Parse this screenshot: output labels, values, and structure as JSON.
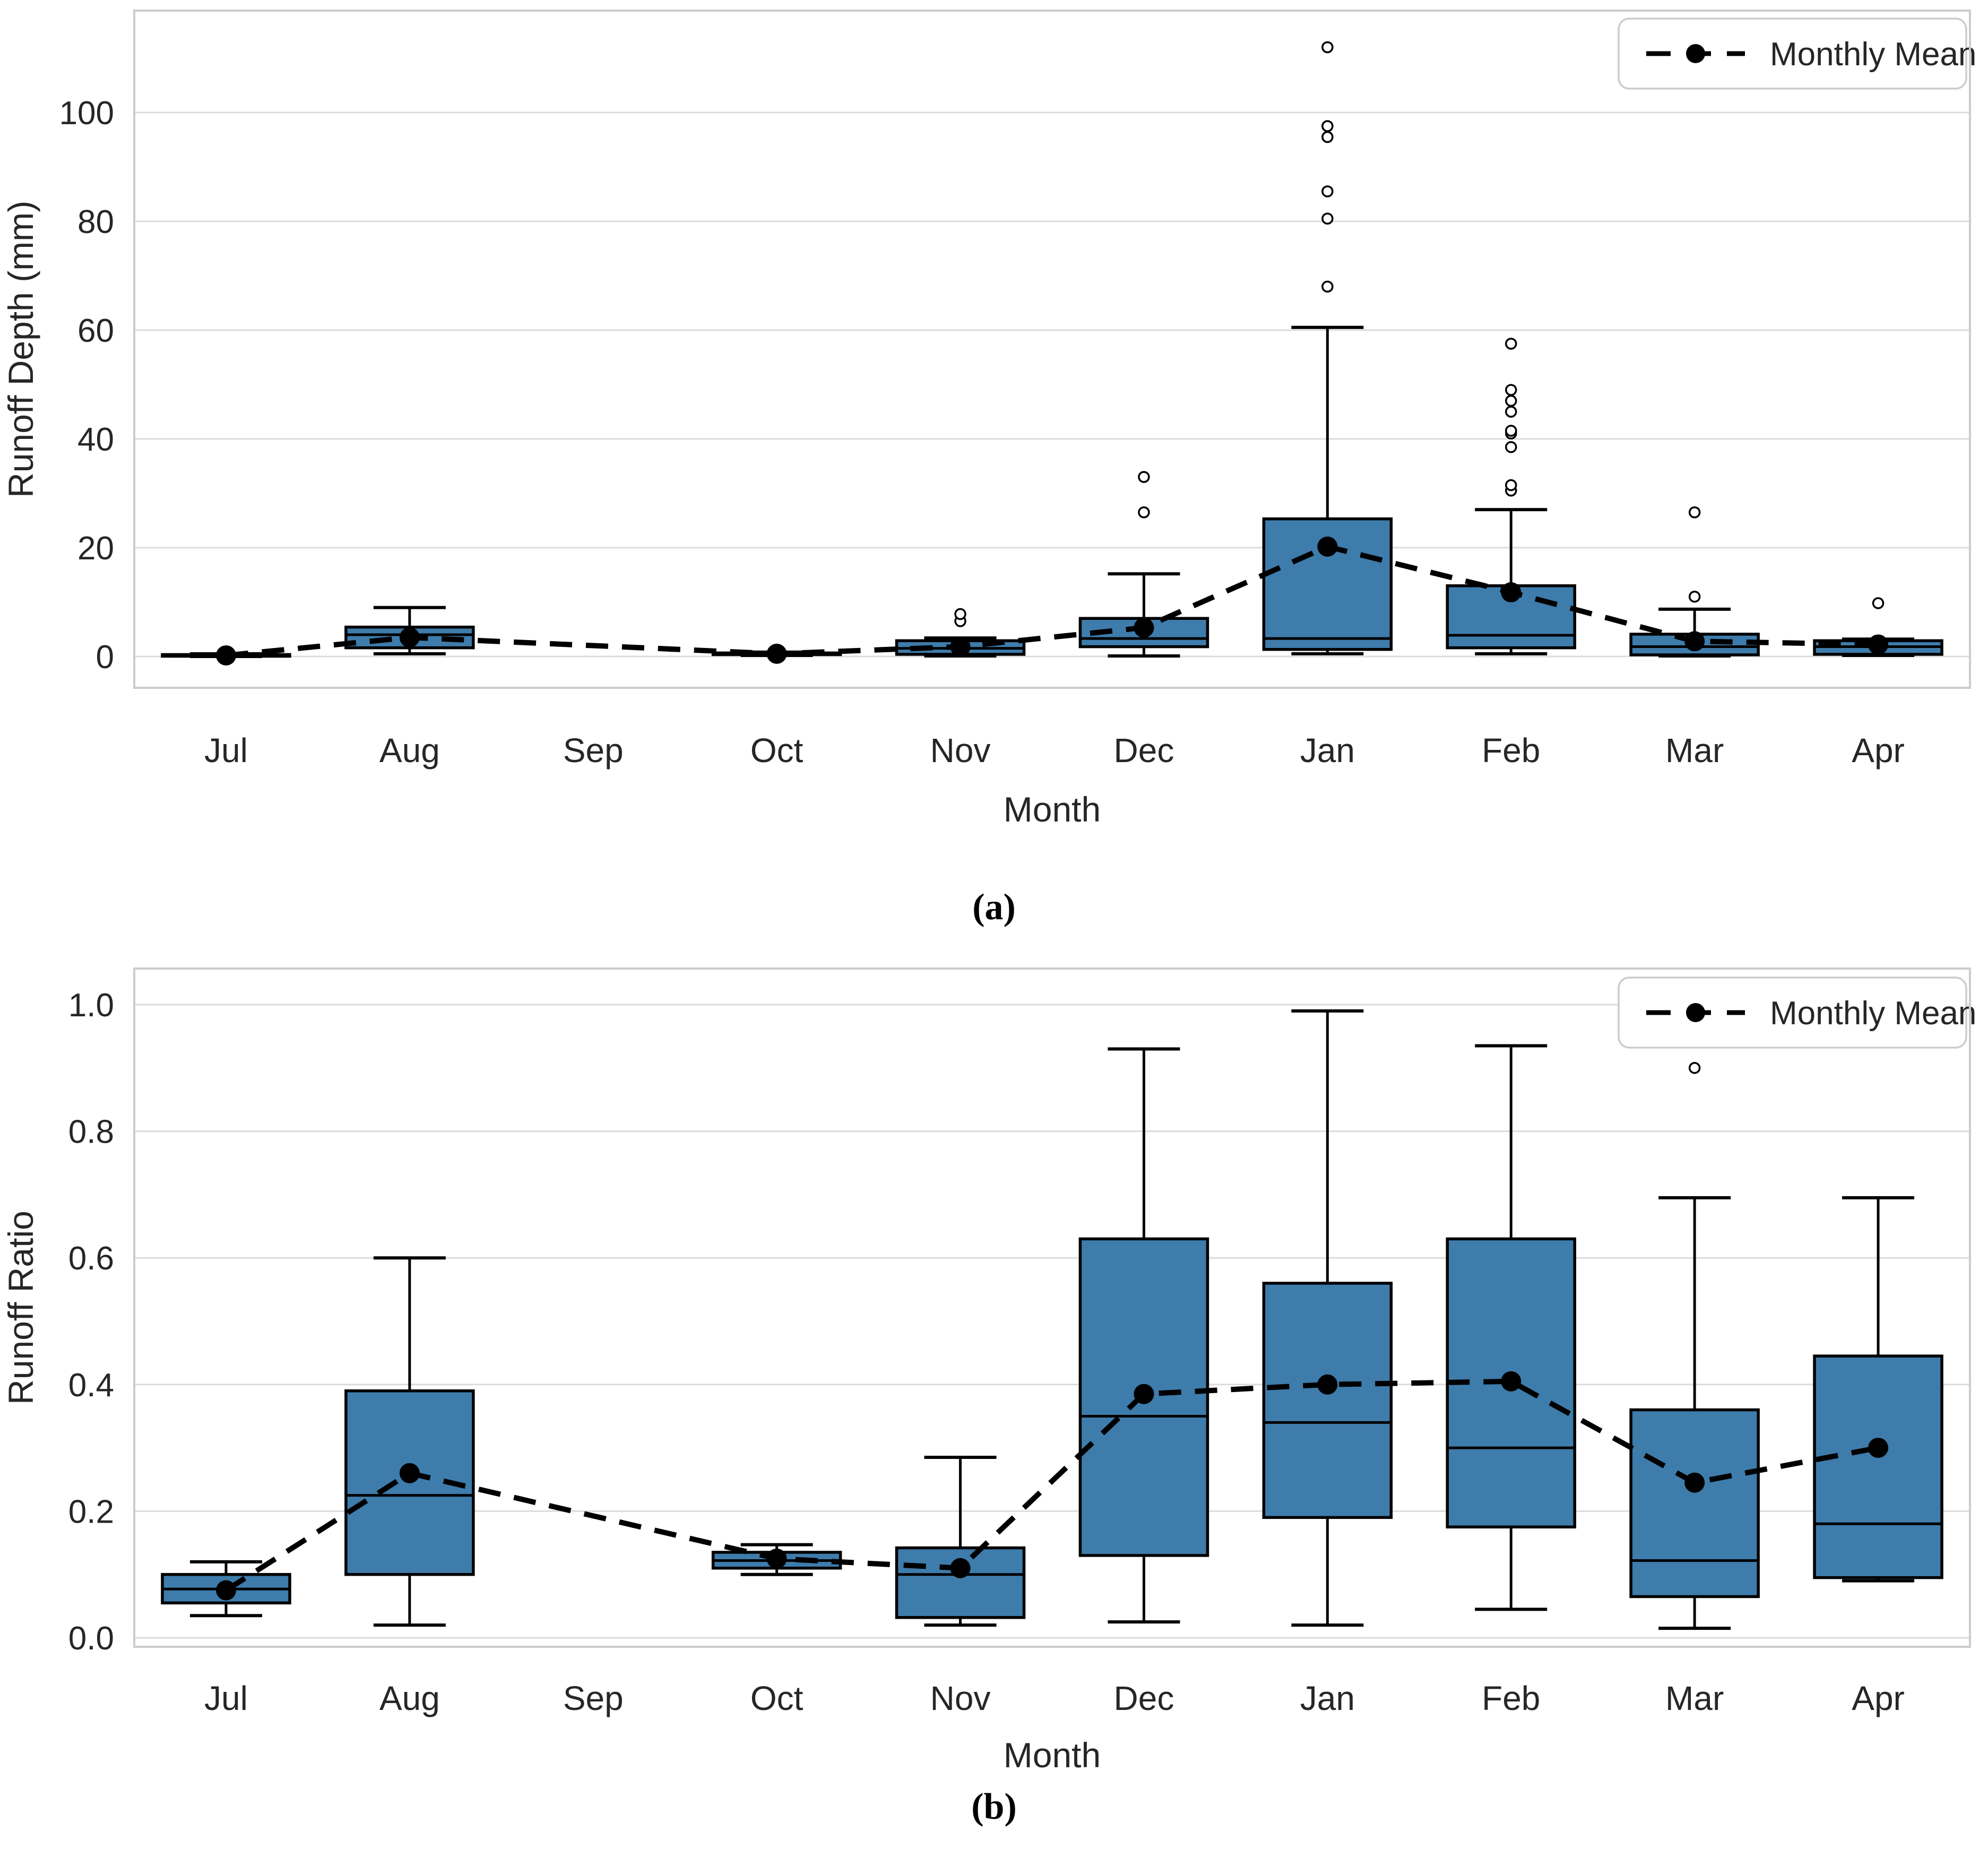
{
  "figure": {
    "captions": {
      "a": "(a)",
      "b": "(b)"
    }
  },
  "colors": {
    "box_fill": "#3e7cab",
    "box_stroke": "#000000",
    "grid": "#dcdcdc",
    "spine": "#cccccc",
    "text": "#262626",
    "mean_line": "#000000",
    "background": "#ffffff"
  },
  "chart_data": [
    {
      "id": "a",
      "type": "box",
      "title": "",
      "xlabel": "Month",
      "ylabel": "Runoff Depth (mm)",
      "legend_label": "Monthly Mean",
      "legend_position": "upper right",
      "grid": true,
      "ylim": [
        -5.8,
        118.7
      ],
      "yticks": [
        0,
        20,
        40,
        60,
        80,
        100
      ],
      "ytick_labels": [
        "0",
        "20",
        "40",
        "60",
        "80",
        "100"
      ],
      "categories": [
        "Jul",
        "Aug",
        "Sep",
        "Oct",
        "Nov",
        "Dec",
        "Jan",
        "Feb",
        "Mar",
        "Apr"
      ],
      "boxes": [
        {
          "month": "Jul",
          "low": 0.0,
          "q1": 0.05,
          "med": 0.15,
          "q3": 0.35,
          "high": 0.5,
          "mean": 0.2,
          "outliers": []
        },
        {
          "month": "Aug",
          "low": 0.5,
          "q1": 1.6,
          "med": 4.0,
          "q3": 5.4,
          "high": 9.0,
          "mean": 3.5,
          "outliers": []
        },
        null,
        {
          "month": "Oct",
          "low": 0.2,
          "q1": 0.35,
          "med": 0.5,
          "q3": 0.65,
          "high": 0.8,
          "mean": 0.5,
          "outliers": []
        },
        {
          "month": "Nov",
          "low": 0.1,
          "q1": 0.4,
          "med": 1.5,
          "q3": 2.9,
          "high": 3.4,
          "mean": 1.8,
          "outliers": [
            6.5,
            7.8
          ]
        },
        {
          "month": "Dec",
          "low": 0.1,
          "q1": 1.8,
          "med": 3.3,
          "q3": 7.0,
          "high": 15.2,
          "mean": 5.3,
          "outliers": [
            26.5,
            33
          ]
        },
        {
          "month": "Jan",
          "low": 0.5,
          "q1": 1.3,
          "med": 3.3,
          "q3": 25.3,
          "high": 60.5,
          "mean": 20.2,
          "outliers": [
            68,
            80.5,
            85.5,
            95.5,
            97.5,
            112
          ]
        },
        {
          "month": "Feb",
          "low": 0.5,
          "q1": 1.6,
          "med": 3.9,
          "q3": 13.0,
          "high": 27.0,
          "mean": 11.8,
          "outliers": [
            30.5,
            31.5,
            38.5,
            41,
            41.5,
            45,
            47,
            49,
            57.5
          ]
        },
        {
          "month": "Mar",
          "low": 0.1,
          "q1": 0.3,
          "med": 1.8,
          "q3": 4.1,
          "high": 8.7,
          "mean": 2.8,
          "outliers": [
            11,
            26.5
          ]
        },
        {
          "month": "Apr",
          "low": 0.2,
          "q1": 0.4,
          "med": 1.8,
          "q3": 2.9,
          "high": 3.2,
          "mean": 2.2,
          "outliers": [
            9.8
          ]
        }
      ],
      "mean_series": {
        "name": "Monthly Mean",
        "values": [
          0.2,
          3.5,
          null,
          0.5,
          1.8,
          5.3,
          20.2,
          11.8,
          2.8,
          2.2
        ]
      }
    },
    {
      "id": "b",
      "type": "box",
      "title": "",
      "xlabel": "Month",
      "ylabel": "Runoff Ratio",
      "legend_label": "Monthly Mean",
      "legend_position": "upper right",
      "grid": true,
      "ylim": [
        -0.015,
        1.06
      ],
      "yticks": [
        0.0,
        0.2,
        0.4,
        0.6,
        0.8,
        1.0
      ],
      "ytick_labels": [
        "0.0",
        "0.2",
        "0.4",
        "0.6",
        "0.8",
        "1.0"
      ],
      "categories": [
        "Jul",
        "Aug",
        "Sep",
        "Oct",
        "Nov",
        "Dec",
        "Jan",
        "Feb",
        "Mar",
        "Apr"
      ],
      "boxes": [
        {
          "month": "Jul",
          "low": 0.035,
          "q1": 0.055,
          "med": 0.077,
          "q3": 0.1,
          "high": 0.12,
          "mean": 0.075,
          "outliers": []
        },
        {
          "month": "Aug",
          "low": 0.02,
          "q1": 0.1,
          "med": 0.225,
          "q3": 0.39,
          "high": 0.6,
          "mean": 0.26,
          "outliers": []
        },
        null,
        {
          "month": "Oct",
          "low": 0.1,
          "q1": 0.11,
          "med": 0.122,
          "q3": 0.135,
          "high": 0.147,
          "mean": 0.125,
          "outliers": []
        },
        {
          "month": "Nov",
          "low": 0.02,
          "q1": 0.032,
          "med": 0.1,
          "q3": 0.142,
          "high": 0.285,
          "mean": 0.11,
          "outliers": []
        },
        {
          "month": "Dec",
          "low": 0.025,
          "q1": 0.13,
          "med": 0.35,
          "q3": 0.63,
          "high": 0.93,
          "mean": 0.385,
          "outliers": []
        },
        {
          "month": "Jan",
          "low": 0.02,
          "q1": 0.19,
          "med": 0.34,
          "q3": 0.56,
          "high": 0.99,
          "mean": 0.4,
          "outliers": []
        },
        {
          "month": "Feb",
          "low": 0.045,
          "q1": 0.175,
          "med": 0.3,
          "q3": 0.63,
          "high": 0.935,
          "mean": 0.405,
          "outliers": []
        },
        {
          "month": "Mar",
          "low": 0.015,
          "q1": 0.065,
          "med": 0.122,
          "q3": 0.36,
          "high": 0.695,
          "mean": 0.245,
          "outliers": [
            0.9
          ]
        },
        {
          "month": "Apr",
          "low": 0.09,
          "q1": 0.095,
          "med": 0.18,
          "q3": 0.445,
          "high": 0.695,
          "mean": 0.3,
          "outliers": []
        }
      ],
      "mean_series": {
        "name": "Monthly Mean",
        "values": [
          0.075,
          0.26,
          null,
          0.125,
          0.11,
          0.385,
          0.4,
          0.405,
          0.245,
          0.3
        ]
      }
    }
  ]
}
